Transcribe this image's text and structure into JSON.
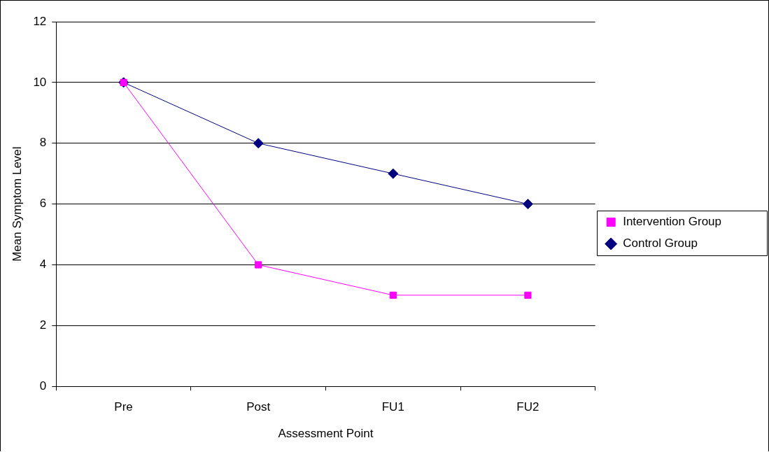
{
  "chart_data": {
    "type": "line",
    "xlabel": "Assessment Point",
    "ylabel": "Mean Symptom Level",
    "categories": [
      "Pre",
      "Post",
      "FU1",
      "FU2"
    ],
    "series": [
      {
        "name": "Intervention Group",
        "color": "#ff00ff",
        "marker": "square",
        "values": [
          10,
          4,
          3,
          3
        ]
      },
      {
        "name": "Control Group",
        "color": "#000080",
        "marker": "diamond",
        "values": [
          10,
          8,
          7,
          6
        ]
      }
    ],
    "ylim": [
      0,
      12
    ],
    "yticks": [
      0,
      2,
      4,
      6,
      8,
      10,
      12
    ],
    "grid": "y",
    "legend": "right",
    "line_style": "solid"
  }
}
